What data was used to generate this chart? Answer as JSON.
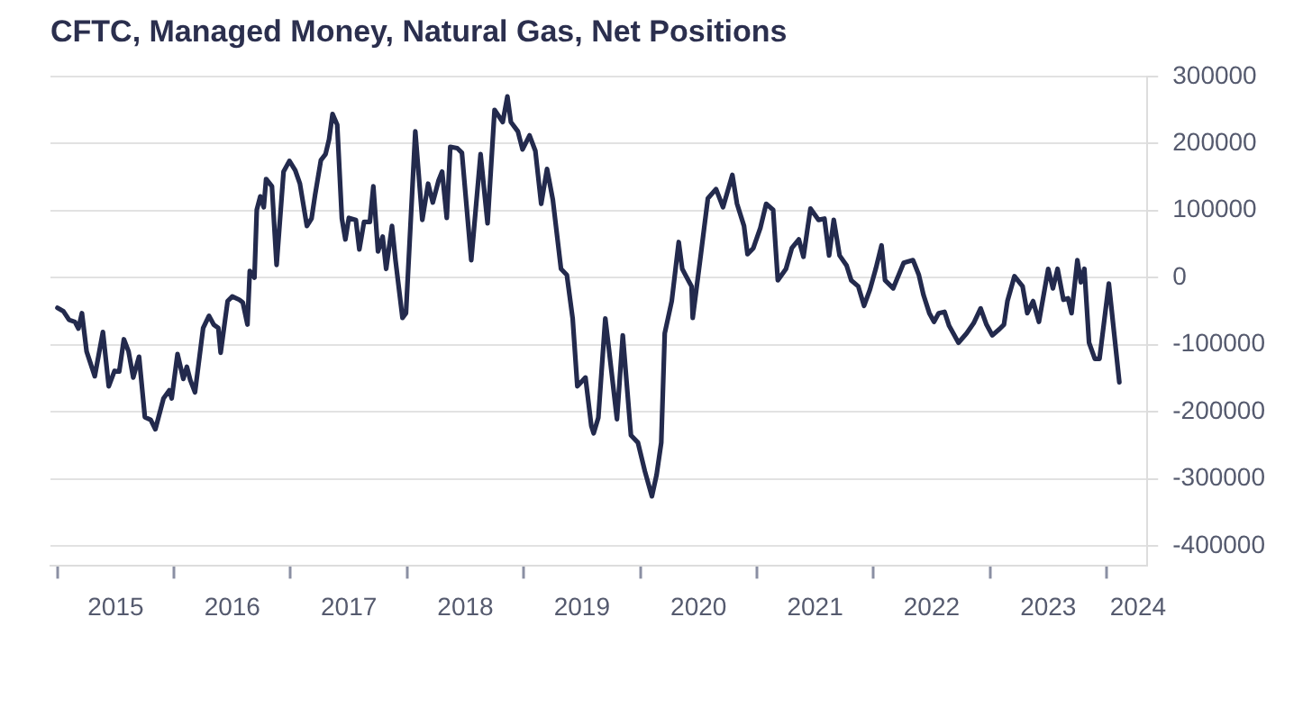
{
  "chart_data": {
    "type": "line",
    "title": "CFTC, Managed Money, Natural Gas, Net Positions",
    "x": [
      2015.0,
      2015.05,
      2015.1,
      2015.15,
      2015.18,
      2015.21,
      2015.25,
      2015.32,
      2015.39,
      2015.44,
      2015.49,
      2015.53,
      2015.57,
      2015.61,
      2015.65,
      2015.7,
      2015.75,
      2015.8,
      2015.84,
      2015.91,
      2015.96,
      2015.98,
      2016.03,
      2016.08,
      2016.11,
      2016.14,
      2016.18,
      2016.25,
      2016.3,
      2016.34,
      2016.38,
      2016.4,
      2016.46,
      2016.5,
      2016.56,
      2016.59,
      2016.63,
      2016.65,
      2016.69,
      2016.71,
      2016.74,
      2016.77,
      2016.79,
      2016.84,
      2016.88,
      2016.94,
      2016.99,
      2017.04,
      2017.08,
      2017.14,
      2017.18,
      2017.21,
      2017.26,
      2017.3,
      2017.33,
      2017.36,
      2017.4,
      2017.44,
      2017.47,
      2017.5,
      2017.56,
      2017.59,
      2017.63,
      2017.68,
      2017.71,
      2017.75,
      2017.79,
      2017.82,
      2017.87,
      2017.9,
      2017.96,
      2017.99,
      2018.07,
      2018.13,
      2018.18,
      2018.22,
      2018.27,
      2018.3,
      2018.34,
      2018.37,
      2018.43,
      2018.47,
      2018.55,
      2018.63,
      2018.69,
      2018.75,
      2018.82,
      2018.86,
      2018.89,
      2018.95,
      2018.99,
      2019.05,
      2019.1,
      2019.15,
      2019.2,
      2019.25,
      2019.32,
      2019.37,
      2019.42,
      2019.46,
      2019.53,
      2019.58,
      2019.6,
      2019.64,
      2019.7,
      2019.73,
      2019.8,
      2019.85,
      2019.92,
      2019.98,
      2020.04,
      2020.1,
      2020.14,
      2020.18,
      2020.21,
      2020.27,
      2020.33,
      2020.36,
      2020.44,
      2020.45,
      2020.52,
      2020.58,
      2020.65,
      2020.71,
      2020.79,
      2020.83,
      2020.89,
      2020.92,
      2020.97,
      2021.03,
      2021.08,
      2021.14,
      2021.18,
      2021.25,
      2021.3,
      2021.36,
      2021.4,
      2021.46,
      2021.53,
      2021.58,
      2021.62,
      2021.66,
      2021.71,
      2021.77,
      2021.81,
      2021.87,
      2021.92,
      2021.97,
      2022.02,
      2022.07,
      2022.1,
      2022.17,
      2022.26,
      2022.34,
      2022.39,
      2022.43,
      2022.48,
      2022.52,
      2022.56,
      2022.61,
      2022.65,
      2022.73,
      2022.8,
      2022.86,
      2022.92,
      2022.97,
      2023.02,
      2023.08,
      2023.12,
      2023.15,
      2023.21,
      2023.28,
      2023.32,
      2023.37,
      2023.42,
      2023.5,
      2023.54,
      2023.58,
      2023.63,
      2023.67,
      2023.7,
      2023.75,
      2023.78,
      2023.81,
      2023.85,
      2023.9,
      2023.94,
      2024.02,
      2024.11
    ],
    "series": [
      {
        "color": "#232a4d",
        "values": [
          -45000,
          -50000,
          -63000,
          -66000,
          -76000,
          -53000,
          -110000,
          -147000,
          -81000,
          -162000,
          -139000,
          -140000,
          -92000,
          -110000,
          -149000,
          -118000,
          -208000,
          -212000,
          -226000,
          -180000,
          -168000,
          -180000,
          -114000,
          -151000,
          -133000,
          -153000,
          -171000,
          -75000,
          -57000,
          -70000,
          -75000,
          -112000,
          -35000,
          -28000,
          -33000,
          -37000,
          -70000,
          10000,
          0,
          101000,
          121000,
          105000,
          147000,
          136000,
          19000,
          158000,
          174000,
          160000,
          140000,
          77000,
          88000,
          123000,
          175000,
          184000,
          206000,
          244000,
          228000,
          88000,
          57000,
          89000,
          86000,
          42000,
          83000,
          83000,
          136000,
          39000,
          61000,
          13000,
          77000,
          26000,
          -60000,
          -53000,
          218000,
          86000,
          140000,
          112000,
          145000,
          158000,
          89000,
          195000,
          193000,
          186000,
          26000,
          184000,
          81000,
          250000,
          232000,
          270000,
          232000,
          218000,
          191000,
          212000,
          189000,
          110000,
          162000,
          116000,
          13000,
          4000,
          -61000,
          -162000,
          -149000,
          -221000,
          -232000,
          -209000,
          -61000,
          -105000,
          -211000,
          -86000,
          -235000,
          -246000,
          -289000,
          -326000,
          -294000,
          -246000,
          -83000,
          -35000,
          53000,
          13000,
          -13000,
          -60000,
          35000,
          118000,
          132000,
          105000,
          153000,
          110000,
          77000,
          35000,
          44000,
          74000,
          110000,
          101000,
          -4000,
          13000,
          44000,
          57000,
          31000,
          103000,
          86000,
          88000,
          33000,
          86000,
          33000,
          18000,
          -4000,
          -13000,
          -42000,
          -18000,
          13000,
          48000,
          -4000,
          -16000,
          22000,
          26000,
          4000,
          -26000,
          -53000,
          -66000,
          -53000,
          -51000,
          -72000,
          -97000,
          -83000,
          -68000,
          -46000,
          -70000,
          -86000,
          -77000,
          -70000,
          -35000,
          2000,
          -13000,
          -53000,
          -35000,
          -66000,
          13000,
          -16000,
          13000,
          -33000,
          -31000,
          -53000,
          26000,
          -7000,
          13000,
          -97000,
          -121000,
          -121000,
          -9000,
          -156000
        ]
      }
    ],
    "xlim": [
      2014.94,
      2024.35
    ],
    "xticks": [
      {
        "value": 2015,
        "label": null
      },
      {
        "value": 2015.5,
        "label": "2015"
      },
      {
        "value": 2016,
        "label": null
      },
      {
        "value": 2016.5,
        "label": "2016"
      },
      {
        "value": 2017,
        "label": null
      },
      {
        "value": 2017.5,
        "label": "2017"
      },
      {
        "value": 2018,
        "label": null
      },
      {
        "value": 2018.5,
        "label": "2018"
      },
      {
        "value": 2019,
        "label": null
      },
      {
        "value": 2019.5,
        "label": "2019"
      },
      {
        "value": 2020,
        "label": null
      },
      {
        "value": 2020.5,
        "label": "2020"
      },
      {
        "value": 2021,
        "label": null
      },
      {
        "value": 2021.5,
        "label": "2021"
      },
      {
        "value": 2022,
        "label": null
      },
      {
        "value": 2022.5,
        "label": "2022"
      },
      {
        "value": 2023,
        "label": null
      },
      {
        "value": 2023.5,
        "label": "2023"
      },
      {
        "value": 2024,
        "label": null
      },
      {
        "value": 2024.27,
        "label": "2024"
      }
    ],
    "ylim": [
      -430000,
      300000
    ],
    "yticks": [
      -400000,
      -300000,
      -200000,
      -100000,
      0,
      100000,
      200000,
      300000
    ],
    "grid": "y",
    "legend": false,
    "marker": "none",
    "line_style": "solid"
  }
}
